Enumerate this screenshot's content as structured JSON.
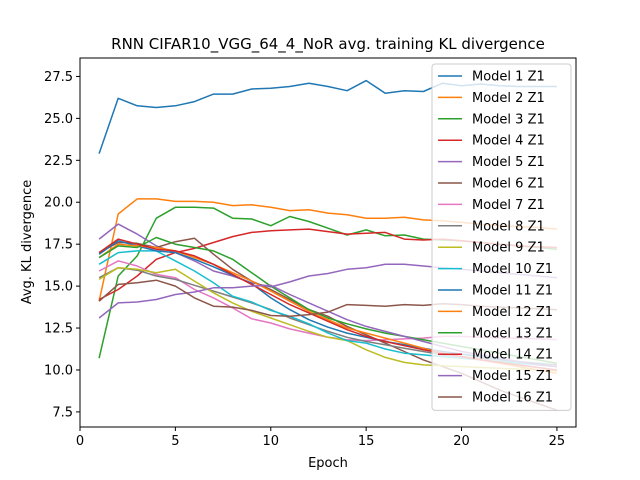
{
  "chart_data": {
    "type": "line",
    "title": "RNN CIFAR10_VGG_64_4_NoR avg. training KL divergence",
    "xlabel": "Epoch",
    "ylabel": "Avg. KL divergence",
    "xlim": [
      0,
      26
    ],
    "ylim": [
      6.6,
      28.6
    ],
    "xticks": [
      0,
      5,
      10,
      15,
      20,
      25
    ],
    "yticks": [
      7.5,
      10.0,
      12.5,
      15.0,
      17.5,
      20.0,
      22.5,
      25.0,
      27.5
    ],
    "legend_position": "top-right",
    "grid": false,
    "x": [
      1,
      2,
      3,
      4,
      5,
      6,
      7,
      8,
      9,
      10,
      11,
      12,
      13,
      14,
      15,
      16,
      17,
      18,
      19,
      20,
      21,
      22,
      23,
      24,
      25
    ],
    "series": [
      {
        "name": "Model 1 Z1",
        "color": "#1f77b4",
        "values": [
          22.9,
          26.2,
          25.75,
          25.65,
          25.75,
          26.0,
          26.45,
          26.45,
          26.75,
          26.8,
          26.9,
          27.1,
          26.9,
          26.65,
          27.25,
          26.5,
          26.65,
          26.6,
          27.1,
          26.95,
          27.05,
          26.95,
          26.9,
          26.9,
          26.9
        ]
      },
      {
        "name": "Model 2 Z1",
        "color": "#ff7f0e",
        "values": [
          14.1,
          19.3,
          20.2,
          20.2,
          20.05,
          20.05,
          20.0,
          19.8,
          19.85,
          19.7,
          19.5,
          19.55,
          19.35,
          19.25,
          19.05,
          19.05,
          19.1,
          18.95,
          18.9,
          18.8,
          18.7,
          18.6,
          18.55,
          18.5,
          18.4
        ]
      },
      {
        "name": "Model 3 Z1",
        "color": "#2ca02c",
        "values": [
          10.7,
          15.6,
          16.8,
          19.05,
          19.7,
          19.7,
          19.65,
          19.05,
          19.0,
          18.6,
          19.15,
          18.85,
          18.45,
          18.05,
          18.35,
          18.0,
          18.05,
          17.8,
          17.75,
          17.7,
          17.6,
          17.5,
          17.4,
          17.3,
          17.2
        ]
      },
      {
        "name": "Model 4 Z1",
        "color": "#d62728",
        "values": [
          14.2,
          14.8,
          15.6,
          16.6,
          17.0,
          17.25,
          17.6,
          17.95,
          18.2,
          18.3,
          18.35,
          18.4,
          18.25,
          18.1,
          18.15,
          18.2,
          17.8,
          17.75,
          17.8,
          17.7,
          17.6,
          17.5,
          17.4,
          17.35,
          17.3
        ]
      },
      {
        "name": "Model 5 Z1",
        "color": "#9467bd",
        "values": [
          17.8,
          18.7,
          18.1,
          17.4,
          17.0,
          16.5,
          15.9,
          15.6,
          15.2,
          14.95,
          15.25,
          15.6,
          15.75,
          16.0,
          16.1,
          16.3,
          16.3,
          16.2,
          16.1,
          16.0,
          15.9,
          15.8,
          15.7,
          15.6,
          15.5
        ]
      },
      {
        "name": "Model 6 Z1",
        "color": "#8c564b",
        "values": [
          17.0,
          17.6,
          17.55,
          17.3,
          17.65,
          17.85,
          16.9,
          16.0,
          15.3,
          14.8,
          14.2,
          13.6,
          13.2,
          12.6,
          12.1,
          11.6,
          11.1,
          10.6,
          10.2,
          9.8,
          9.3,
          8.8,
          8.4,
          8.0,
          7.6
        ]
      },
      {
        "name": "Model 7 Z1",
        "color": "#e377c2",
        "values": [
          15.9,
          16.5,
          16.2,
          15.7,
          15.5,
          14.8,
          14.3,
          13.7,
          13.05,
          12.8,
          12.45,
          12.2,
          11.95,
          11.8,
          11.75,
          11.8,
          11.85,
          11.9,
          12.0,
          12.0,
          11.95,
          11.9,
          11.9,
          11.85,
          11.8
        ]
      },
      {
        "name": "Model 8 Z1",
        "color": "#7f7f7f",
        "values": [
          15.5,
          16.1,
          15.95,
          15.6,
          15.4,
          15.05,
          14.7,
          14.35,
          14.0,
          13.6,
          13.1,
          12.7,
          12.3,
          11.95,
          11.7,
          11.5,
          11.3,
          11.1,
          10.9,
          10.8,
          10.7,
          10.6,
          10.5,
          10.4,
          10.3
        ]
      },
      {
        "name": "Model 9 Z1",
        "color": "#bcbd22",
        "values": [
          15.4,
          16.1,
          16.0,
          15.8,
          16.0,
          15.3,
          14.6,
          14.0,
          13.5,
          13.1,
          12.7,
          12.3,
          11.95,
          11.75,
          11.2,
          10.75,
          10.45,
          10.3,
          10.25,
          10.2,
          10.15,
          10.1,
          10.05,
          10.0,
          9.95
        ]
      },
      {
        "name": "Model 10 Z1",
        "color": "#17becf",
        "values": [
          16.3,
          17.0,
          17.1,
          17.1,
          16.5,
          15.9,
          15.2,
          14.4,
          14.05,
          13.55,
          13.2,
          12.75,
          12.2,
          11.75,
          11.6,
          11.25,
          11.0,
          10.9,
          10.8,
          10.7,
          10.6,
          10.5,
          10.4,
          10.3,
          10.2
        ]
      },
      {
        "name": "Model 11 Z1",
        "color": "#1f77b4",
        "values": [
          16.9,
          17.7,
          17.4,
          17.1,
          17.0,
          16.6,
          16.15,
          15.65,
          15.15,
          14.3,
          13.6,
          13.0,
          12.55,
          12.2,
          11.95,
          11.7,
          11.5,
          11.3,
          11.1,
          10.95,
          10.8,
          10.65,
          10.5,
          10.35,
          10.2
        ]
      },
      {
        "name": "Model 12 Z1",
        "color": "#ff7f0e",
        "values": [
          16.7,
          17.5,
          17.4,
          17.3,
          17.1,
          16.7,
          16.3,
          15.8,
          15.3,
          14.7,
          14.1,
          13.5,
          13.0,
          12.5,
          12.2,
          11.9,
          11.6,
          11.3,
          11.0,
          10.8,
          10.6,
          10.4,
          10.2,
          10.0,
          9.8
        ]
      },
      {
        "name": "Model 13 Z1",
        "color": "#2ca02c",
        "values": [
          16.7,
          17.4,
          17.3,
          17.9,
          17.5,
          17.3,
          17.1,
          16.6,
          15.8,
          15.0,
          14.3,
          13.6,
          13.1,
          12.75,
          12.45,
          12.2,
          12.0,
          11.8,
          11.6,
          11.4,
          11.2,
          11.0,
          10.8,
          10.6,
          10.4
        ]
      },
      {
        "name": "Model 14 Z1",
        "color": "#d62728",
        "values": [
          17.0,
          17.8,
          17.5,
          17.2,
          17.1,
          16.8,
          16.3,
          15.7,
          15.1,
          14.5,
          13.9,
          13.4,
          12.9,
          12.4,
          12.0,
          11.7,
          11.45,
          11.2,
          11.0,
          10.8,
          10.6,
          10.45,
          10.3,
          10.15,
          10.0
        ]
      },
      {
        "name": "Model 15 Z1",
        "color": "#9467bd",
        "values": [
          13.1,
          14.0,
          14.05,
          14.2,
          14.5,
          14.65,
          14.9,
          14.9,
          15.0,
          15.05,
          14.5,
          14.0,
          13.5,
          13.0,
          12.6,
          12.3,
          12.0,
          11.7,
          11.4,
          11.1,
          10.9,
          10.7,
          10.5,
          10.3,
          10.2
        ]
      },
      {
        "name": "Model 16 Z1",
        "color": "#8c564b",
        "values": [
          14.1,
          15.1,
          15.2,
          15.35,
          15.0,
          14.3,
          13.8,
          13.75,
          13.55,
          13.25,
          13.2,
          13.3,
          13.45,
          13.9,
          13.85,
          13.8,
          13.9,
          13.85,
          13.95,
          13.9,
          13.8,
          13.75,
          13.7,
          13.65,
          13.6
        ]
      }
    ]
  }
}
